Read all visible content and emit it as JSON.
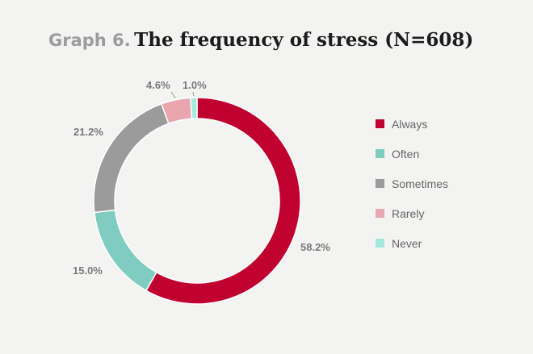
{
  "header": {
    "prefix": "Graph 6.",
    "title": "The frequency of stress (N=608)"
  },
  "chart_data": {
    "type": "pie",
    "variant": "donut",
    "title": "The frequency of stress (N=608)",
    "categories": [
      "Always",
      "Often",
      "Sometimes",
      "Rarely",
      "Never"
    ],
    "values": [
      58.2,
      15.0,
      21.2,
      4.6,
      1.0
    ],
    "labels": [
      "58.2%",
      "15.0%",
      "21.2%",
      "4.6%",
      "1.0%"
    ],
    "colors": [
      "#c0002f",
      "#7fcdc0",
      "#9b9b9b",
      "#eaa6ae",
      "#a4eadc"
    ],
    "legend": "right"
  }
}
